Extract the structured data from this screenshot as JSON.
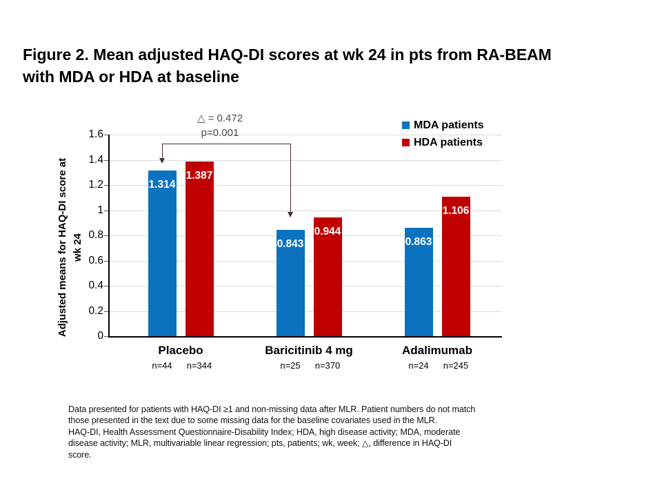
{
  "figure": {
    "title_line1": "Figure 2. Mean adjusted HAQ-DI scores at wk 24 in pts from RA-BEAM",
    "title_line2": "with MDA or HDA at baseline"
  },
  "annotation": {
    "delta_label": "△ = 0.472",
    "p_label": "p=0.001"
  },
  "chart_data": {
    "type": "bar",
    "categories": [
      "Placebo",
      "Baricitinib 4 mg",
      "Adalimumab"
    ],
    "series": [
      {
        "name": "MDA patients",
        "color": "#0b72c0",
        "values": [
          1.314,
          0.843,
          0.863
        ],
        "n_labels": [
          "n=44",
          "n=25",
          "n=24"
        ]
      },
      {
        "name": "HDA patients",
        "color": "#c00000",
        "values": [
          1.387,
          0.944,
          1.106
        ],
        "n_labels": [
          "n=344",
          "n=370",
          "n=245"
        ]
      }
    ],
    "ylabel_line1": "Adjusted means for HAQ-DI score at",
    "ylabel_line2": "wk 24",
    "ylim": [
      0,
      1.6
    ],
    "yticks": [
      0,
      0.2,
      0.4,
      0.6,
      0.8,
      1,
      1.2,
      1.4,
      1.6
    ],
    "ytick_labels": [
      "0",
      "0.2",
      "0.4",
      "0.6",
      "0.8",
      "1",
      "1.2",
      "1.4",
      "1.6"
    ],
    "grid": true,
    "legend_position": "top-right",
    "comparison": {
      "between": [
        "Placebo",
        "Baricitinib 4 mg"
      ],
      "series": "MDA patients",
      "delta": 0.472,
      "p": 0.001
    }
  },
  "footnote": {
    "lines": [
      "Data presented for patients with HAQ-DI ≥1 and non-missing data after MLR. Patient numbers do not match",
      "those presented in the text due to some missing data for the baseline covariates used in the MLR.",
      "HAQ-DI, Health Assessment Questionnaire-Disability Index; HDA, high disease activity; MDA, moderate",
      "disease activity; MLR, multivariable linear regression; pts, patients; wk, week; △, difference in HAQ-DI",
      "score."
    ]
  },
  "colors": {
    "mda_blue": "#0b72c0",
    "hda_red": "#c00000",
    "gridline": "#d9d9d9",
    "axis": "#000000",
    "bracket": "#463434"
  }
}
